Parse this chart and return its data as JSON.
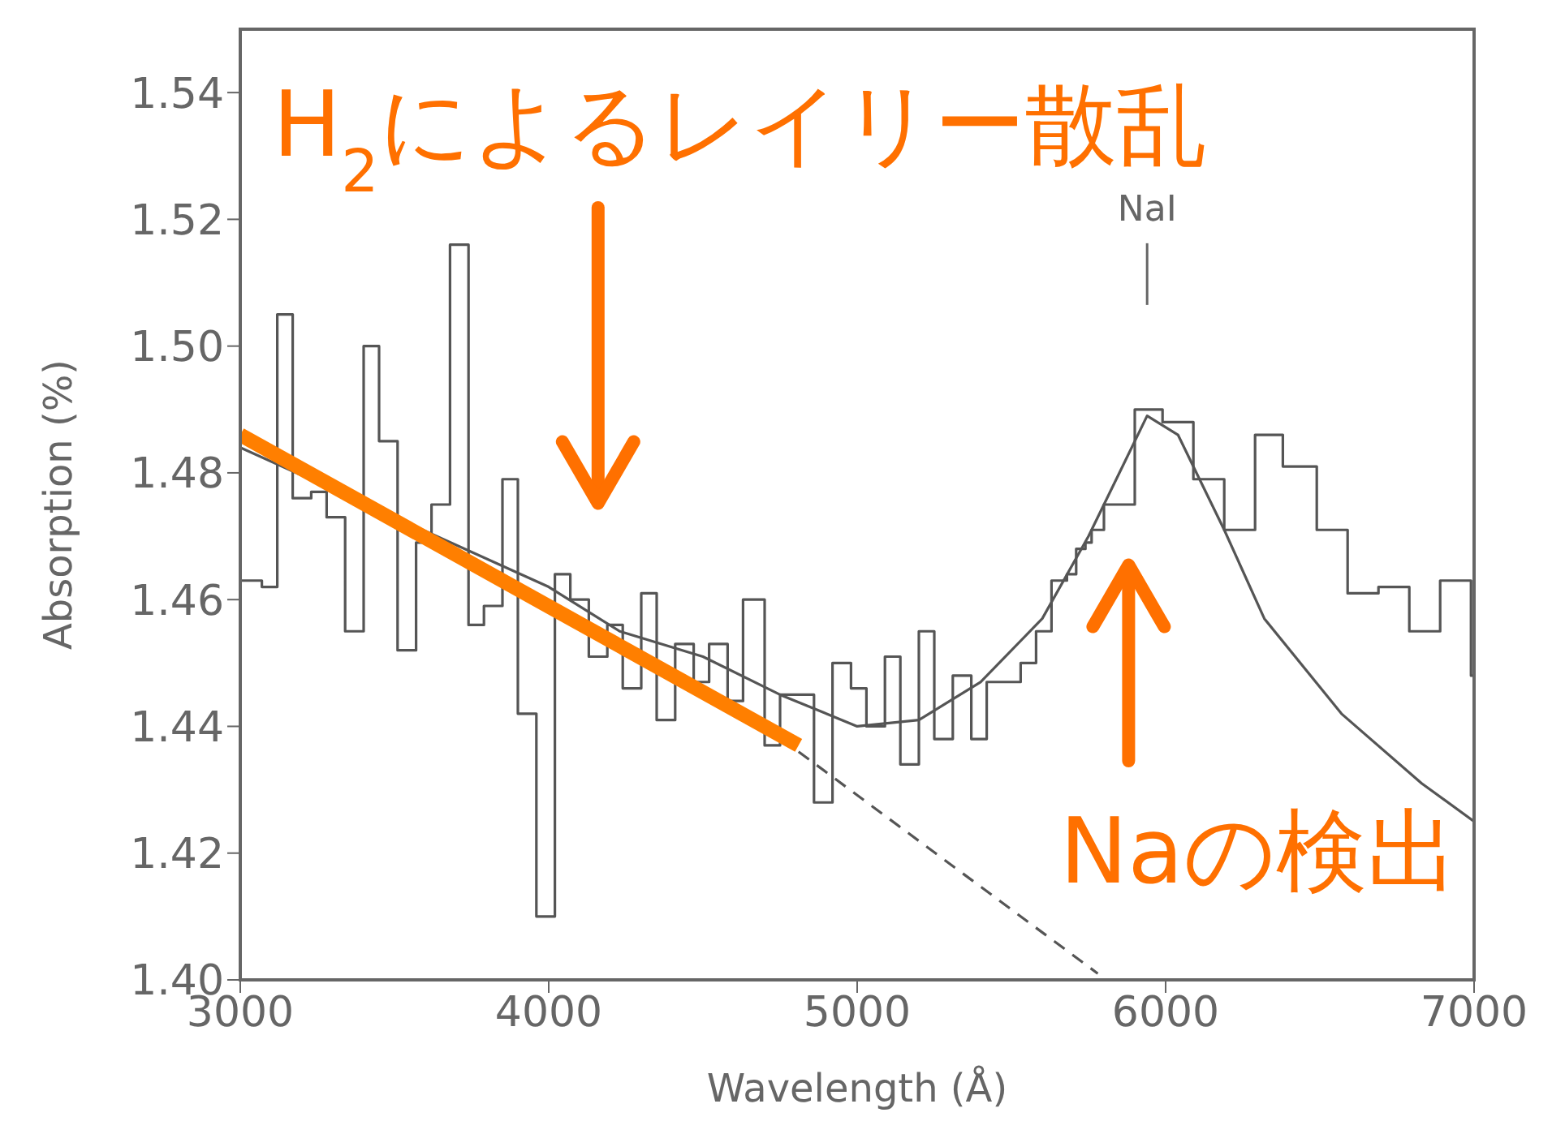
{
  "chart_data": {
    "type": "step",
    "xlabel": "Wavelength (Å)",
    "ylabel": "Absorption (%)",
    "xlim": [
      3000,
      7000
    ],
    "xticks": [
      3000,
      4000,
      5000,
      6000,
      7000
    ],
    "ylim": [
      1.4,
      1.55
    ],
    "yticks": [
      {
        "value": 1.4,
        "label": "1.40"
      },
      1.42,
      1.44,
      1.46,
      1.48,
      {
        "value": 1.5,
        "label": "1.50"
      },
      1.52,
      1.54
    ],
    "series": [
      {
        "color": "#555555",
        "x": [
          3000,
          3070,
          3120,
          3170,
          3230,
          3280,
          3340,
          3400,
          3450,
          3510,
          3570,
          3620,
          3680,
          3740,
          3790,
          3850,
          3900,
          3960,
          4020,
          4070,
          4130,
          4190,
          4240,
          4300,
          4350,
          4410,
          4470,
          4520,
          4580,
          4630,
          4700,
          4750,
          4810,
          4860,
          4920,
          4980,
          5030,
          5090,
          5140,
          5200,
          5250,
          5310,
          5370,
          5420,
          5480,
          5530,
          5580,
          5630,
          5680,
          5710,
          5740,
          5760,
          5800,
          5900,
          5990,
          6090,
          6190,
          6290,
          6380,
          6490,
          6590,
          6690,
          6790,
          6890,
          6990,
          7000
        ],
        "values": [
          1.463,
          1.462,
          1.505,
          1.476,
          1.477,
          1.473,
          1.455,
          1.5,
          1.485,
          1.452,
          1.469,
          1.475,
          1.516,
          1.456,
          1.459,
          1.479,
          1.442,
          1.41,
          1.464,
          1.46,
          1.451,
          1.456,
          1.446,
          1.461,
          1.441,
          1.453,
          1.447,
          1.453,
          1.444,
          1.46,
          1.437,
          1.445,
          1.445,
          1.428,
          1.45,
          1.446,
          1.44,
          1.451,
          1.434,
          1.455,
          1.438,
          1.448,
          1.438,
          1.447,
          1.447,
          1.45,
          1.455,
          1.463,
          1.464,
          1.468,
          1.469,
          1.471,
          1.475,
          1.49,
          1.488,
          1.479,
          1.471,
          1.486,
          1.481,
          1.471,
          1.461,
          1.462,
          1.455,
          1.463,
          1.448,
          1.448
        ]
      },
      {
        "type": "line",
        "color": "#555555",
        "x": [
          3000,
          4000,
          4230,
          4500,
          4750,
          5000,
          5200,
          5400,
          5600,
          5750,
          5850,
          5940,
          6040,
          6100,
          6190,
          6320,
          6570,
          6830,
          7000
        ],
        "values": [
          1.484,
          1.462,
          1.455,
          1.451,
          1.445,
          1.44,
          1.441,
          1.447,
          1.457,
          1.47,
          1.48,
          1.489,
          1.486,
          1.48,
          1.471,
          1.457,
          1.442,
          1.431,
          1.425
        ]
      },
      {
        "type": "line",
        "color": "#555555",
        "line_style": "dashed",
        "x": [
          4810,
          5780
        ],
        "values": [
          1.436,
          1.401
        ]
      },
      {
        "type": "line",
        "color": "#ff7f00",
        "x": [
          3000,
          4810
        ],
        "values": [
          1.486,
          1.437
        ]
      }
    ],
    "annotations": [
      "NaI",
      "H$_{2}$によるレイリー散乱",
      "Naの検出"
    ]
  }
}
